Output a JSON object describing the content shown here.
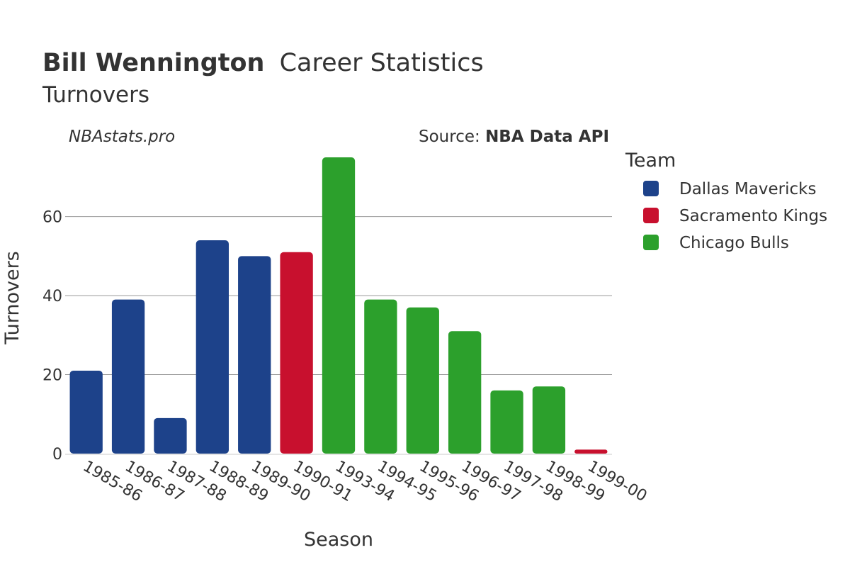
{
  "header": {
    "title_bold": "Bill Wennington",
    "title_rest": "Career Statistics",
    "subtitle": "Turnovers",
    "credit_left": "NBAstats.pro",
    "credit_right_prefix": "Source: ",
    "credit_right_bold": "NBA Data API"
  },
  "legend": {
    "title": "Team",
    "items": [
      {
        "label": "Dallas Mavericks",
        "color": "#1d428a"
      },
      {
        "label": "Sacramento Kings",
        "color": "#c8102e"
      },
      {
        "label": "Chicago Bulls",
        "color": "#2ca02c"
      }
    ]
  },
  "chart_data": {
    "type": "bar",
    "title": "Bill Wennington Career Statistics",
    "subtitle": "Turnovers",
    "xlabel": "Season",
    "ylabel": "Turnovers",
    "ylim": [
      0,
      75
    ],
    "yticks": [
      0,
      20,
      40,
      60
    ],
    "grid": true,
    "legend_position": "right",
    "categories": [
      "1985-86",
      "1986-87",
      "1987-88",
      "1988-89",
      "1989-90",
      "1990-91",
      "1993-94",
      "1994-95",
      "1995-96",
      "1996-97",
      "1997-98",
      "1998-99",
      "1999-00"
    ],
    "values": [
      21,
      39,
      9,
      54,
      50,
      51,
      75,
      39,
      37,
      31,
      16,
      17,
      1
    ],
    "teams": [
      "Dallas Mavericks",
      "Dallas Mavericks",
      "Dallas Mavericks",
      "Dallas Mavericks",
      "Dallas Mavericks",
      "Sacramento Kings",
      "Chicago Bulls",
      "Chicago Bulls",
      "Chicago Bulls",
      "Chicago Bulls",
      "Chicago Bulls",
      "Chicago Bulls",
      "Sacramento Kings"
    ]
  }
}
